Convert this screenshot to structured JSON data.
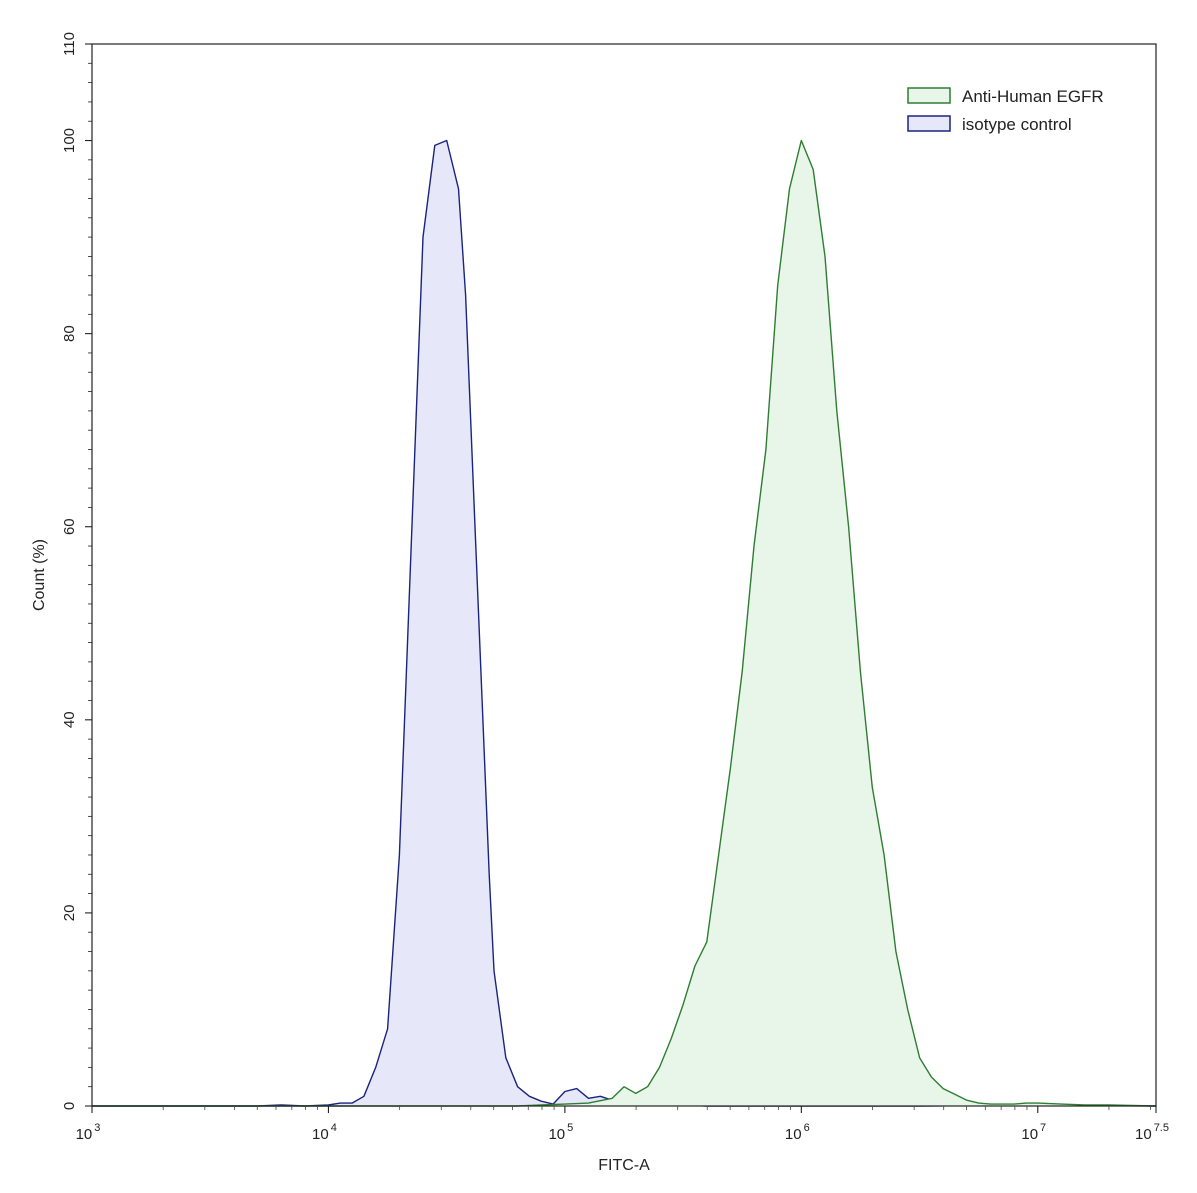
{
  "chart_data": {
    "type": "area",
    "xlabel": "FITC-A",
    "ylabel": "Count  (%)",
    "xscale": "log",
    "xlim_exp": [
      3,
      7.5
    ],
    "ylim": [
      0,
      110
    ],
    "grid": false,
    "legend_position": "top-right",
    "x_ticks": [
      {
        "base": "10",
        "exp": "3",
        "value_exp": 3
      },
      {
        "base": "10",
        "exp": "4",
        "value_exp": 4
      },
      {
        "base": "10",
        "exp": "5",
        "value_exp": 5
      },
      {
        "base": "10",
        "exp": "6",
        "value_exp": 6
      },
      {
        "base": "10",
        "exp": "7",
        "value_exp": 7
      },
      {
        "base": "10",
        "exp": "7.5",
        "value_exp": 7.5
      }
    ],
    "y_ticks": [
      {
        "label": "0",
        "value": 0
      },
      {
        "label": "20",
        "value": 20
      },
      {
        "label": "40",
        "value": 40
      },
      {
        "label": "60",
        "value": 60
      },
      {
        "label": "80",
        "value": 80
      },
      {
        "label": "100",
        "value": 100
      },
      {
        "label": "110",
        "value": 110
      }
    ],
    "series": [
      {
        "name": "isotype control",
        "stroke": "#1a237e",
        "fill": "#e6e8fa",
        "x_log10": [
          3.0,
          3.7,
          3.8,
          3.9,
          4.0,
          4.05,
          4.1,
          4.15,
          4.2,
          4.25,
          4.3,
          4.35,
          4.4,
          4.45,
          4.5,
          4.55,
          4.58,
          4.6,
          4.62,
          4.65,
          4.68,
          4.7,
          4.75,
          4.8,
          4.85,
          4.9,
          4.95,
          5.0,
          5.05,
          5.1,
          5.15,
          5.2,
          5.3,
          5.4,
          5.5,
          5.6,
          5.8,
          6.0,
          6.5,
          7.0,
          7.5
        ],
        "y": [
          0,
          0,
          0.1,
          0,
          0.1,
          0.3,
          0.3,
          1,
          4,
          8,
          26,
          58,
          90,
          99.5,
          100,
          95,
          84,
          72,
          60,
          42,
          24,
          14,
          5,
          2,
          1,
          0.5,
          0.2,
          1.5,
          1.8,
          0.8,
          1.0,
          0.6,
          0.3,
          0.2,
          0.1,
          0,
          0,
          0,
          0,
          0.1,
          0
        ]
      },
      {
        "name": "Anti-Human EGFR",
        "stroke": "#2e7d32",
        "fill": "#e8f5e9",
        "x_log10": [
          3.0,
          4.8,
          4.9,
          5.0,
          5.1,
          5.2,
          5.25,
          5.3,
          5.35,
          5.4,
          5.45,
          5.5,
          5.55,
          5.6,
          5.65,
          5.7,
          5.75,
          5.8,
          5.85,
          5.9,
          5.95,
          6.0,
          6.05,
          6.1,
          6.15,
          6.2,
          6.25,
          6.3,
          6.35,
          6.4,
          6.45,
          6.5,
          6.55,
          6.6,
          6.65,
          6.7,
          6.75,
          6.8,
          6.85,
          6.9,
          6.95,
          7.0,
          7.1,
          7.2,
          7.3,
          7.5
        ],
        "y": [
          0,
          0,
          0.1,
          0.2,
          0.3,
          0.8,
          2.0,
          1.3,
          2.0,
          4.0,
          7.0,
          10.5,
          14.5,
          17.0,
          26.0,
          35.0,
          45.0,
          58.0,
          68.0,
          85.0,
          95.0,
          100.0,
          97.0,
          88.0,
          72.0,
          60.0,
          45.0,
          33.0,
          26.0,
          16.0,
          10.0,
          5.0,
          3.0,
          1.8,
          1.2,
          0.6,
          0.3,
          0.2,
          0.2,
          0.2,
          0.3,
          0.3,
          0.2,
          0.1,
          0.1,
          0
        ]
      }
    ],
    "legend": [
      {
        "label": "Anti-Human EGFR",
        "stroke": "#2e7d32",
        "fill": "#e8f5e9"
      },
      {
        "label": "isotype control",
        "stroke": "#1a237e",
        "fill": "#e6e8fa"
      }
    ]
  }
}
